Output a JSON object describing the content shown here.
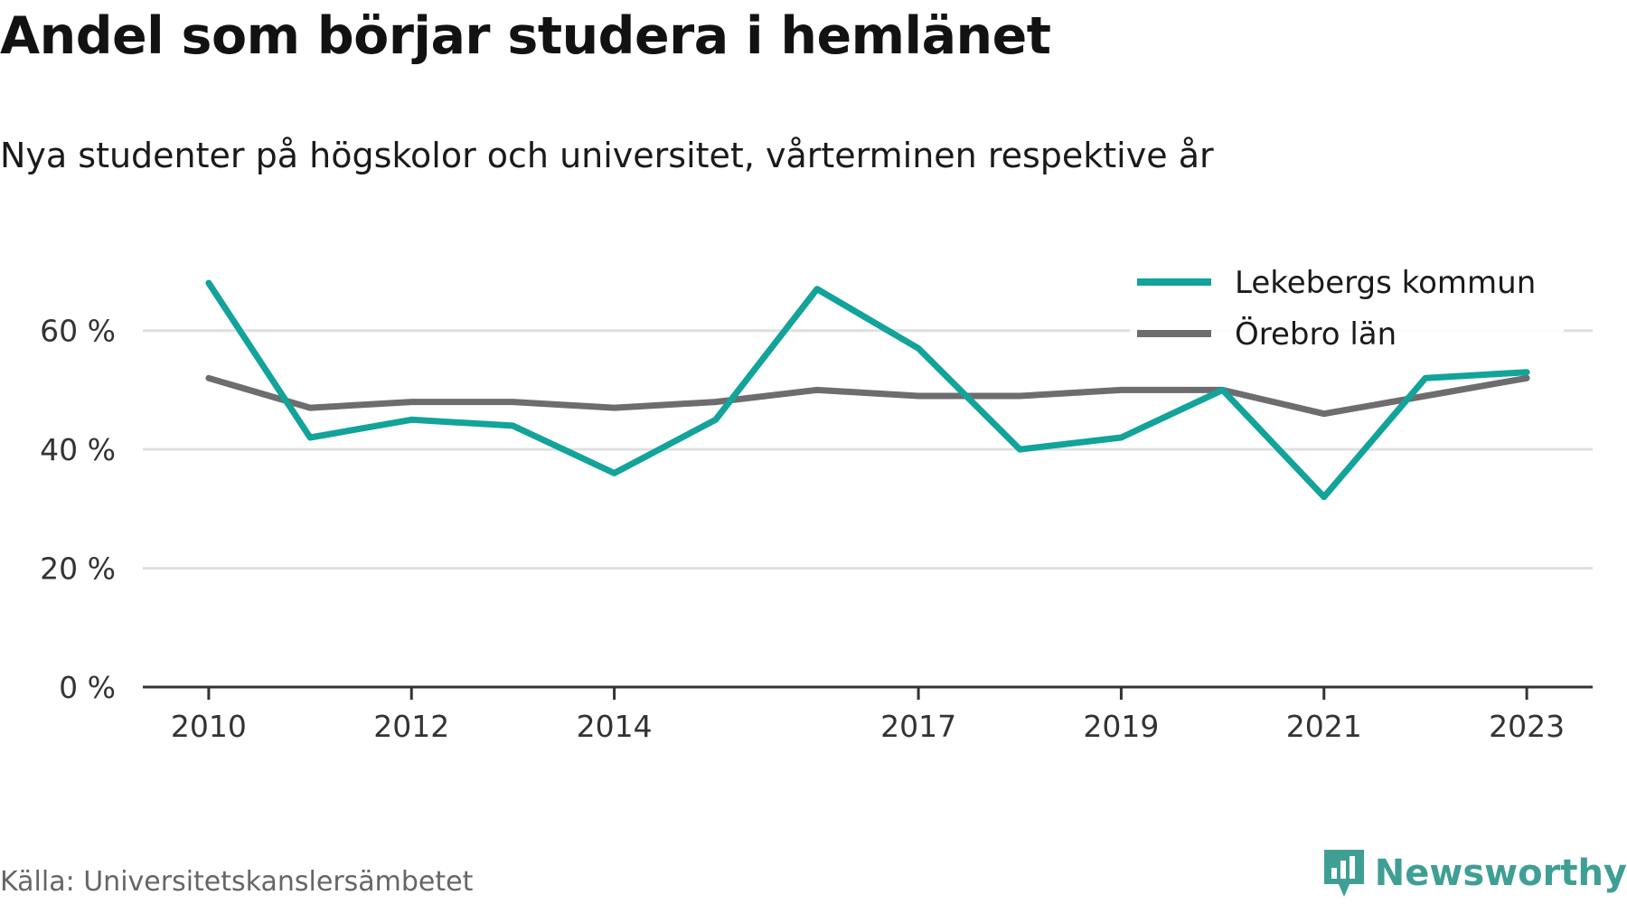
{
  "title": "Andel som börjar studera i hemlänet",
  "subtitle": "Nya studenter på högskolor och universitet, vårterminen respektive år",
  "source": "Källa: Universitetskanslersämbetet",
  "brand": "Newsworthy",
  "colors": {
    "lekeberg": "#12a39a",
    "orebro": "#6d6d70",
    "grid": "#e0e0e0",
    "axis": "#333333",
    "brand": "#3f9f94"
  },
  "chart_data": {
    "type": "line",
    "x": [
      2010,
      2011,
      2012,
      2013,
      2014,
      2015,
      2016,
      2017,
      2018,
      2019,
      2020,
      2021,
      2022,
      2023
    ],
    "x_tick_labels": [
      "2010",
      "2012",
      "2014",
      "2017",
      "2019",
      "2021",
      "2023"
    ],
    "x_tick_values": [
      2010,
      2012,
      2014,
      2017,
      2019,
      2021,
      2023
    ],
    "y_tick_labels": [
      "0 %",
      "20 %",
      "40 %",
      "60 %"
    ],
    "y_tick_values": [
      0,
      20,
      40,
      60
    ],
    "ylim": [
      0,
      70
    ],
    "xlim": [
      2009.35,
      2023.65
    ],
    "grid": true,
    "legend_position": "top-right",
    "series": [
      {
        "name": "Lekebergs kommun",
        "color": "#12a39a",
        "values": [
          68,
          42,
          45,
          44,
          36,
          45,
          67,
          57,
          40,
          42,
          50,
          32,
          52,
          53
        ]
      },
      {
        "name": "Örebro län",
        "color": "#6d6d70",
        "values": [
          52,
          47,
          48,
          48,
          47,
          48,
          50,
          49,
          49,
          50,
          50,
          46,
          49,
          52
        ]
      }
    ]
  }
}
